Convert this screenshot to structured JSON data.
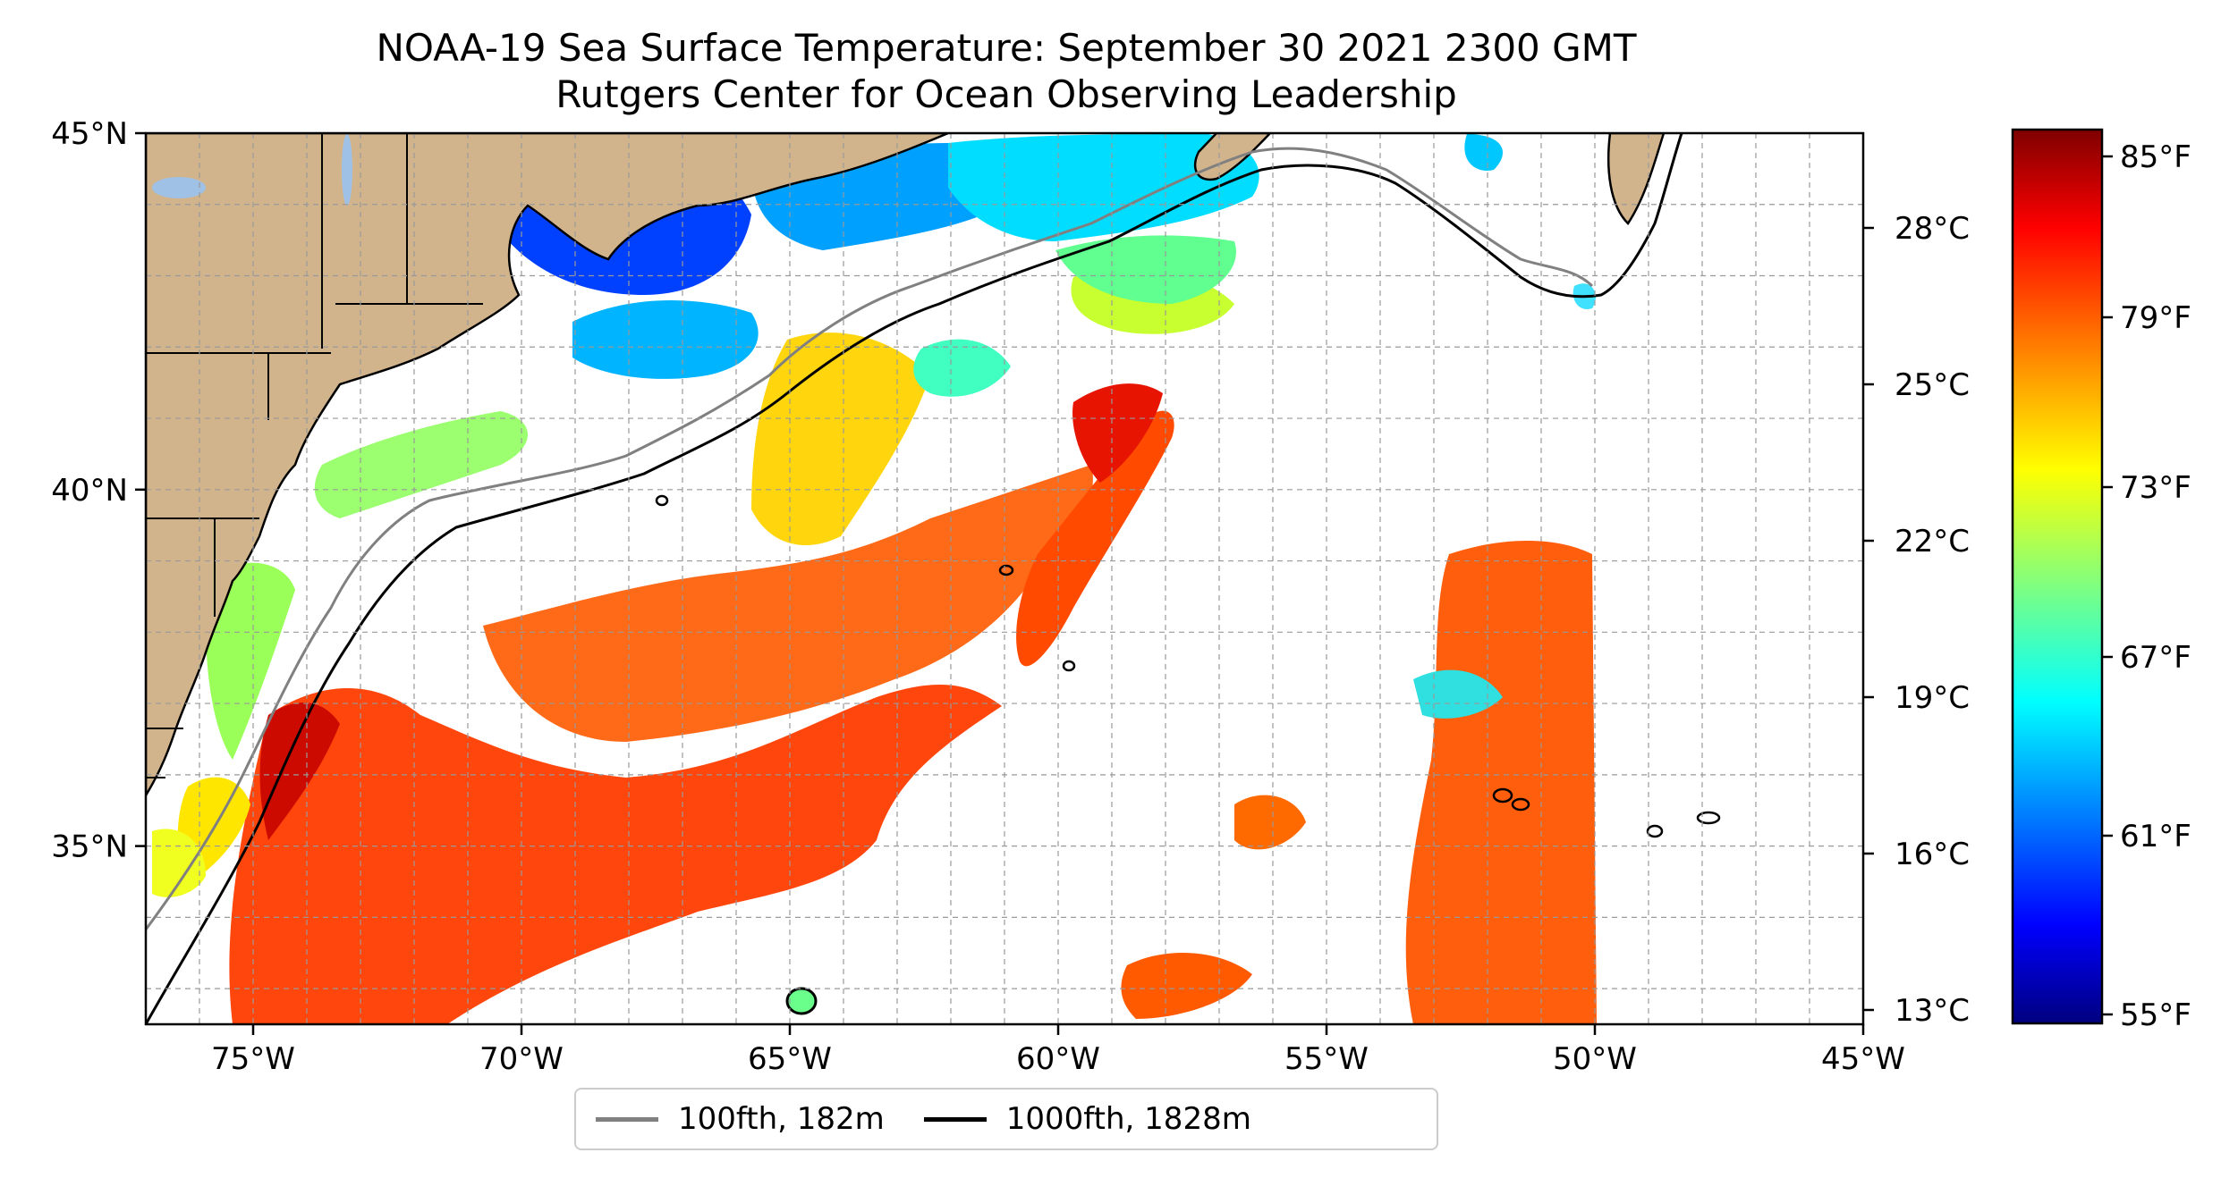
{
  "title": {
    "line1": "NOAA-19 Sea Surface Temperature: September 30 2021 2300 GMT",
    "line2": "Rutgers Center for Ocean Observing Leadership"
  },
  "map": {
    "lon_range": [
      -77,
      -45
    ],
    "lat_range": [
      32.5,
      45
    ],
    "x_ticks": [
      {
        "lon": -75,
        "label": "75°W"
      },
      {
        "lon": -70,
        "label": "70°W"
      },
      {
        "lon": -65,
        "label": "65°W"
      },
      {
        "lon": -60,
        "label": "60°W"
      },
      {
        "lon": -55,
        "label": "55°W"
      },
      {
        "lon": -50,
        "label": "50°W"
      },
      {
        "lon": -45,
        "label": "45°W"
      }
    ],
    "y_ticks": [
      {
        "lat": 45,
        "label": "45°N"
      },
      {
        "lat": 40,
        "label": "40°N"
      },
      {
        "lat": 35,
        "label": "35°N"
      }
    ],
    "gridlines": true,
    "colors": {
      "land": "#d2b48c",
      "ocean_missing": "#ffffff",
      "lakes": "#9fc1e6"
    }
  },
  "colorbar": {
    "colormap": "jet",
    "fahrenheit_ticks": [
      "85°F",
      "79°F",
      "73°F",
      "67°F",
      "61°F",
      "55°F"
    ],
    "celsius_ticks": [
      "28°C",
      "25°C",
      "22°C",
      "19°C",
      "16°C",
      "13°C"
    ],
    "range_f": [
      55,
      86
    ]
  },
  "legend": {
    "items": [
      {
        "label": "100fth, 182m",
        "color": "#808080"
      },
      {
        "label": "1000fth, 1828m",
        "color": "#000000"
      }
    ]
  }
}
